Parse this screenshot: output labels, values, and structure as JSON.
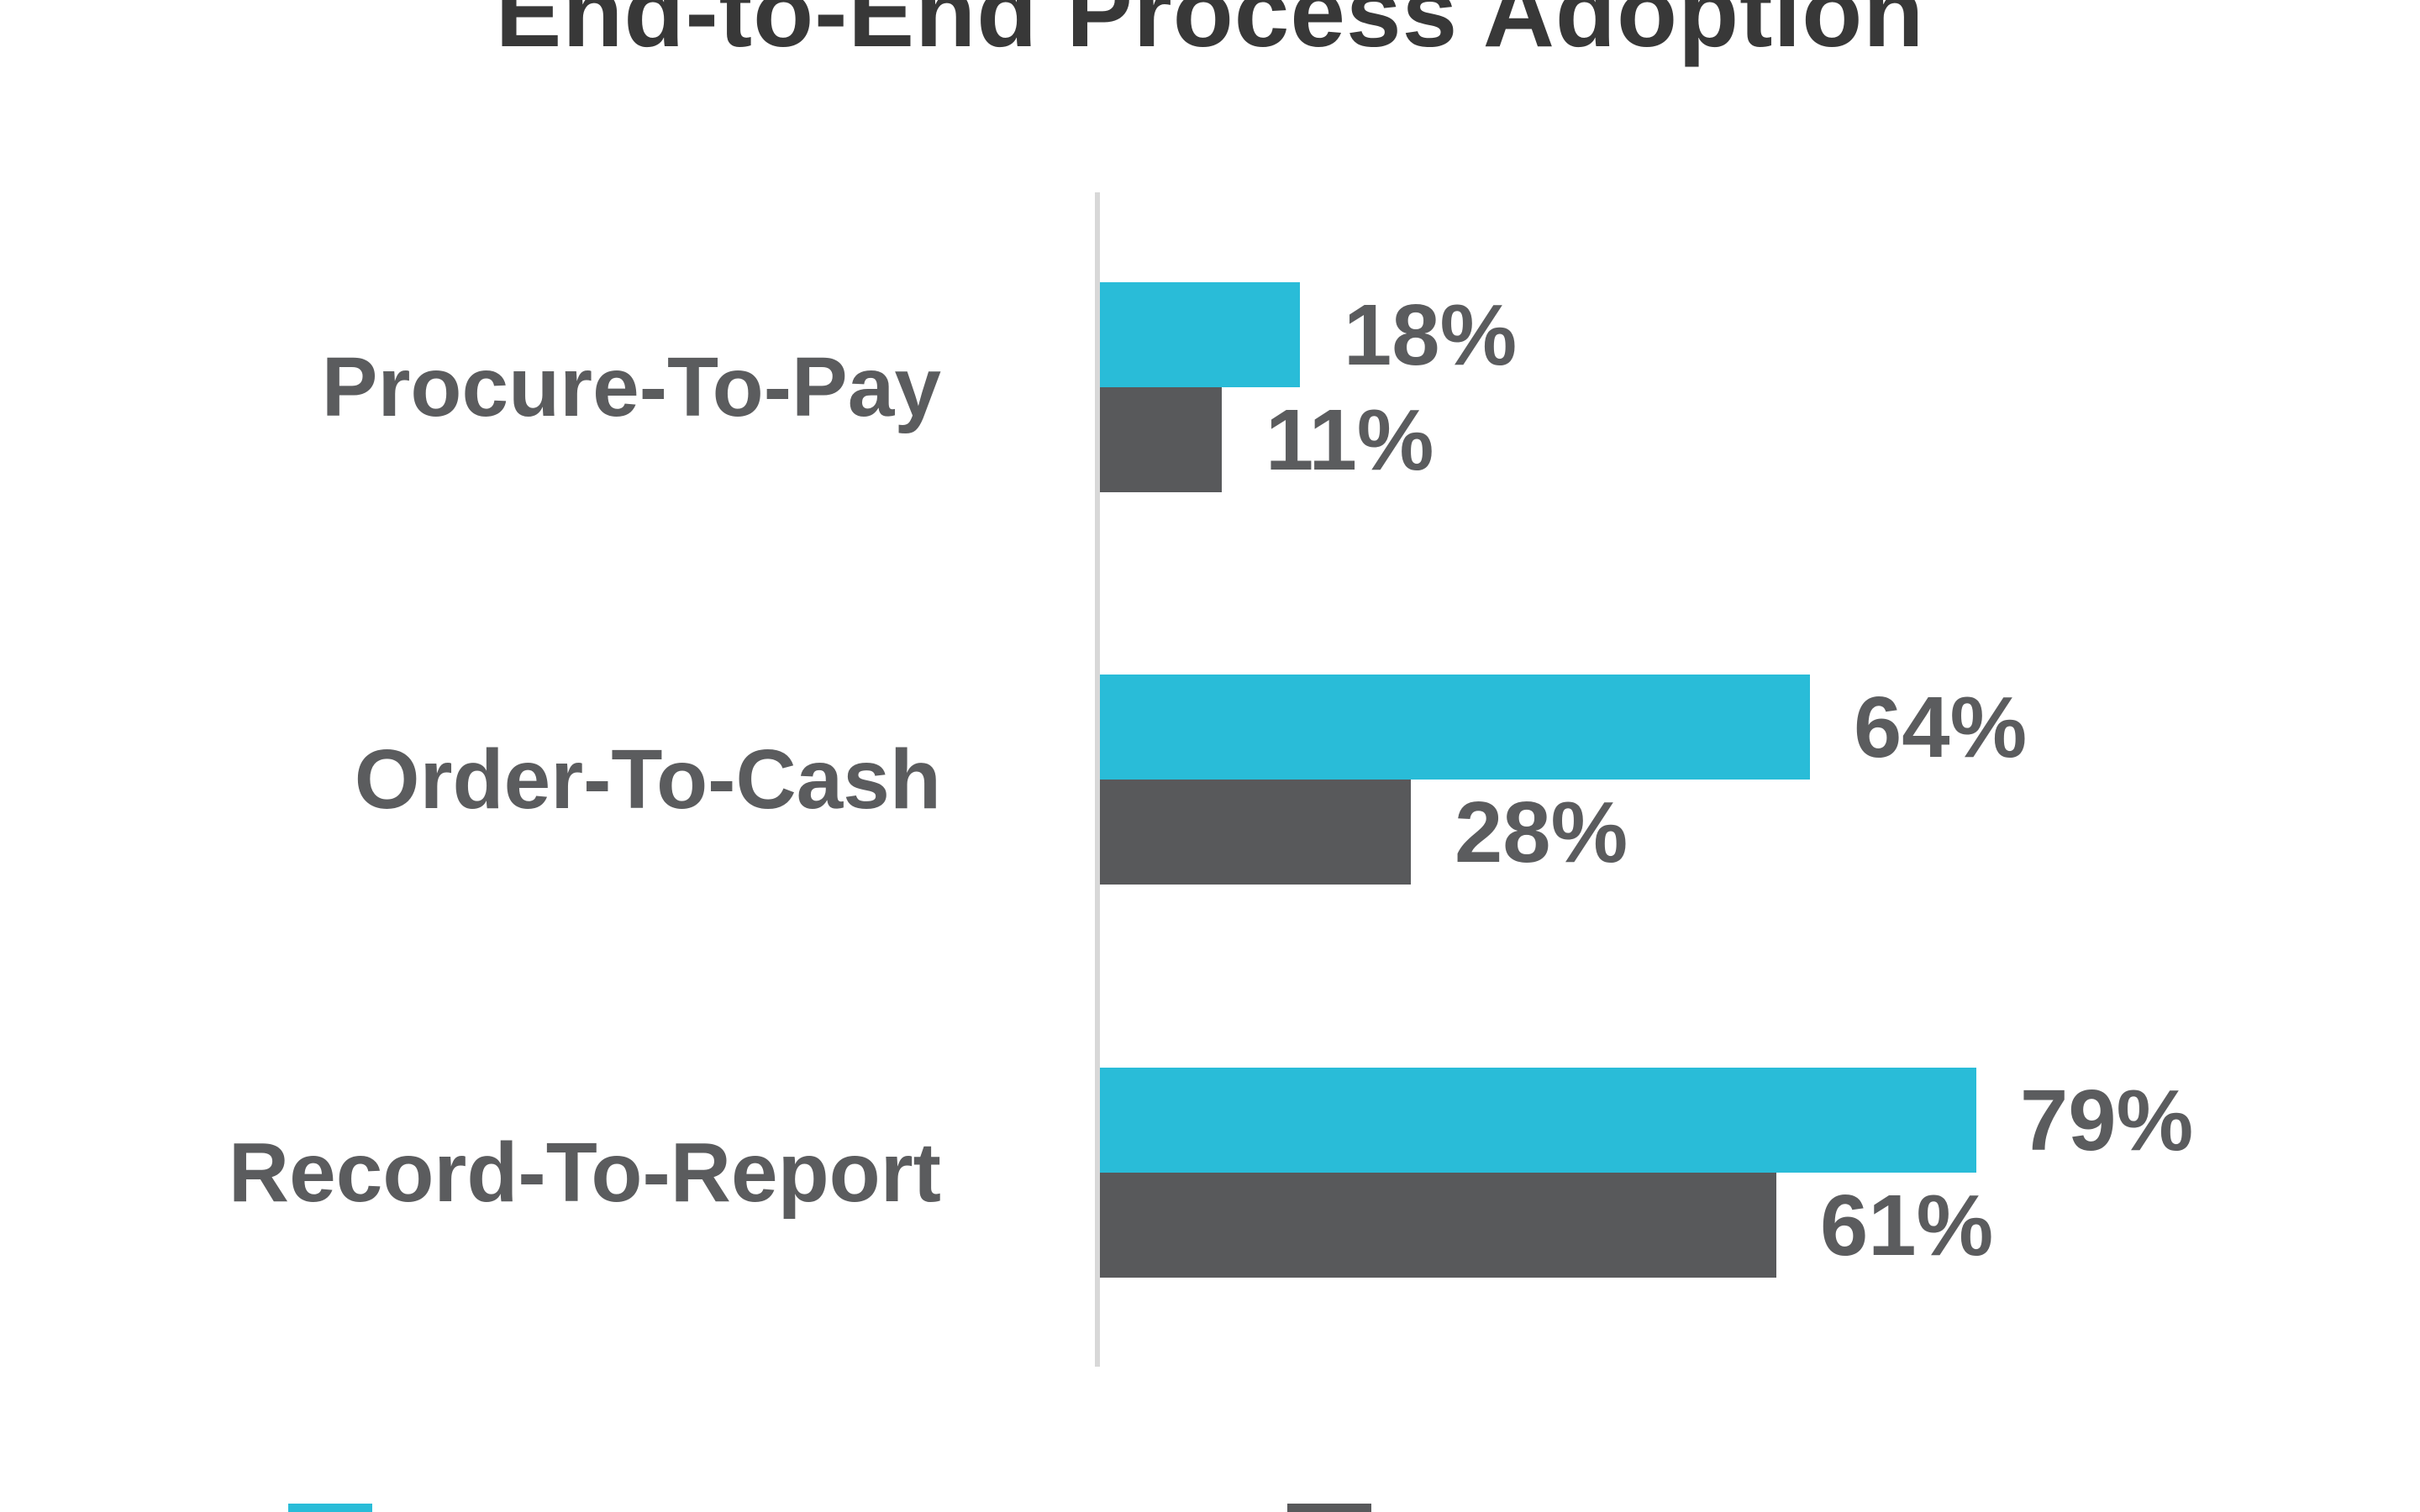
{
  "title": {
    "text": "End-to-End Process Adoption"
  },
  "colors": {
    "background": "#FFFFFF",
    "cyan_series": "#29BCD8",
    "gray_series": "#58595B",
    "label_text": "#5B5C5E",
    "title_text": "#383838",
    "axis_line": "#D8D8D8"
  },
  "chart_data": {
    "type": "bar",
    "orientation": "horizontal",
    "title": "End-to-End Process Adoption",
    "categories": [
      "Procure-To-Pay",
      "Order-To-Cash",
      "Record-To-Report"
    ],
    "series": [
      {
        "name": "cyan-series",
        "color": "#29BCD8",
        "values": [
          18,
          64,
          79
        ],
        "labels": [
          "18%",
          "64%",
          "79%"
        ]
      },
      {
        "name": "gray-series",
        "color": "#58595B",
        "values": [
          11,
          28,
          61
        ],
        "labels": [
          "11%",
          "28%",
          "61%"
        ]
      }
    ],
    "xlim": [
      0,
      100
    ],
    "grid": false,
    "value_labels": "outside-end",
    "legend_position": "bottom",
    "legend_labels_visible": false,
    "legend": [
      {
        "swatch_color": "#29BCD8",
        "label": ""
      },
      {
        "swatch_color": "#58595B",
        "label": ""
      }
    ]
  }
}
